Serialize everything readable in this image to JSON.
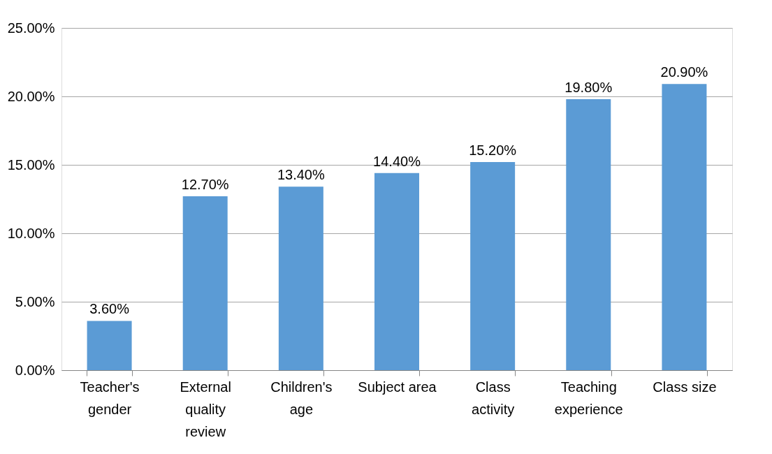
{
  "chart_data": {
    "type": "bar",
    "categories": [
      "Teacher's gender",
      "External quality review",
      "Children's age",
      "Subject area",
      "Class activity",
      "Teaching experience",
      "Class size"
    ],
    "values": [
      3.6,
      12.7,
      13.4,
      14.4,
      15.2,
      19.8,
      20.9
    ],
    "value_labels": [
      "3.60%",
      "12.70%",
      "13.40%",
      "14.40%",
      "15.20%",
      "19.80%",
      "20.90%"
    ],
    "color": "#5b9bd5",
    "ylim": [
      0,
      25
    ],
    "yticks": [
      {
        "value": 0,
        "label": "0.00%"
      },
      {
        "value": 5,
        "label": "5.00%"
      },
      {
        "value": 10,
        "label": "10.00%"
      },
      {
        "value": 15,
        "label": "15.00%"
      },
      {
        "value": 20,
        "label": "20.00%"
      },
      {
        "value": 25,
        "label": "25.00%"
      }
    ],
    "grid": "y"
  }
}
